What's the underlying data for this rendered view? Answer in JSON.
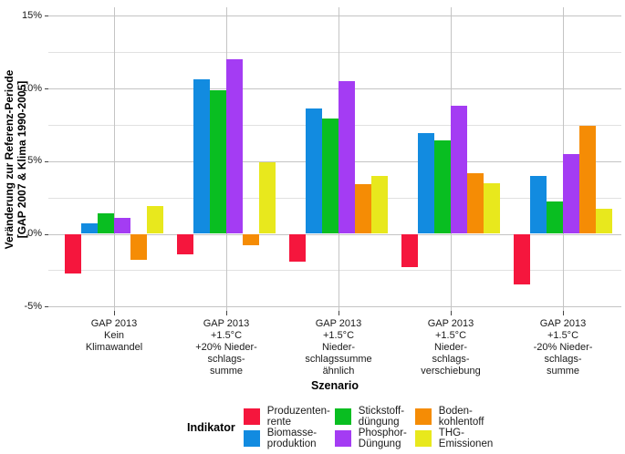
{
  "chart_data": {
    "type": "bar",
    "title": "",
    "ylabel_lines": [
      "Veränderung zur Referenz-Periode",
      "[GAP 2007 & Klima 1990-2005]"
    ],
    "xlabel": "Szenario",
    "legend_title": "Indikator",
    "legend_position": "bottom",
    "ylim": [
      -5,
      15
    ],
    "yticks": [
      15,
      10,
      5,
      0,
      -5
    ],
    "ytick_labels": [
      "15%",
      "10%",
      "5%",
      "0%",
      "-5%"
    ],
    "yminor_ticks": [
      12.5,
      7.5,
      2.5,
      -2.5
    ],
    "grid": {
      "major_color": "#C4C4C4",
      "minor_color": "#E1E1E1",
      "background": "#FFFFFF"
    },
    "categories": [
      {
        "name": "GAP 2013 Kein Klimawandel",
        "lines": [
          "GAP 2013",
          "Kein",
          "Klimawandel"
        ]
      },
      {
        "name": "GAP 2013 +1.5°C +20% Niederschlagssumme",
        "lines": [
          "GAP 2013",
          "+1.5°C",
          "+20% Nieder-",
          "schlags-",
          "summe"
        ]
      },
      {
        "name": "GAP 2013 +1.5°C Niederschlagssumme ähnlich",
        "lines": [
          "GAP 2013",
          "+1.5°C",
          "Nieder-",
          "schlagssumme",
          "ähnlich"
        ]
      },
      {
        "name": "GAP 2013 +1.5°C Niederschlagsverschiebung",
        "lines": [
          "GAP 2013",
          "+1.5°C",
          "Nieder-",
          "schlags-",
          "verschiebung"
        ]
      },
      {
        "name": "GAP 2013 +1.5°C -20% Niederschlagssumme",
        "lines": [
          "GAP 2013",
          "+1.5°C",
          "-20% Nieder-",
          "schlags-",
          "summe"
        ]
      }
    ],
    "series": [
      {
        "name": "Produzentenrente",
        "label_lines": [
          "Produzenten-",
          "rente"
        ],
        "color": "#F5163D",
        "values": [
          -2.7,
          -1.4,
          -1.9,
          -2.3,
          -3.5
        ]
      },
      {
        "name": "Biomasseproduktion",
        "label_lines": [
          "Biomasse-",
          "produktion"
        ],
        "color": "#128BE0",
        "values": [
          0.7,
          10.6,
          8.6,
          6.9,
          4.0
        ]
      },
      {
        "name": "Stickstoffdüngung",
        "label_lines": [
          "Stickstoff-",
          "düngung"
        ],
        "color": "#09BE21",
        "values": [
          1.4,
          9.9,
          7.9,
          6.4,
          2.2
        ]
      },
      {
        "name": "Phosphor-Düngung",
        "label_lines": [
          "Phosphor-",
          "Düngung"
        ],
        "color": "#A43CF3",
        "values": [
          1.1,
          12.0,
          10.5,
          8.8,
          5.5
        ]
      },
      {
        "name": "Bodenkohlentoff",
        "label_lines": [
          "Boden-",
          "kohlentoff"
        ],
        "color": "#F58C05",
        "values": [
          -1.8,
          -0.8,
          3.4,
          4.2,
          7.4
        ]
      },
      {
        "name": "THG-Emissionen",
        "label_lines": [
          "THG-",
          "Emissionen"
        ],
        "color": "#E8E81D",
        "values": [
          1.9,
          4.9,
          4.0,
          3.5,
          1.7
        ]
      }
    ]
  }
}
